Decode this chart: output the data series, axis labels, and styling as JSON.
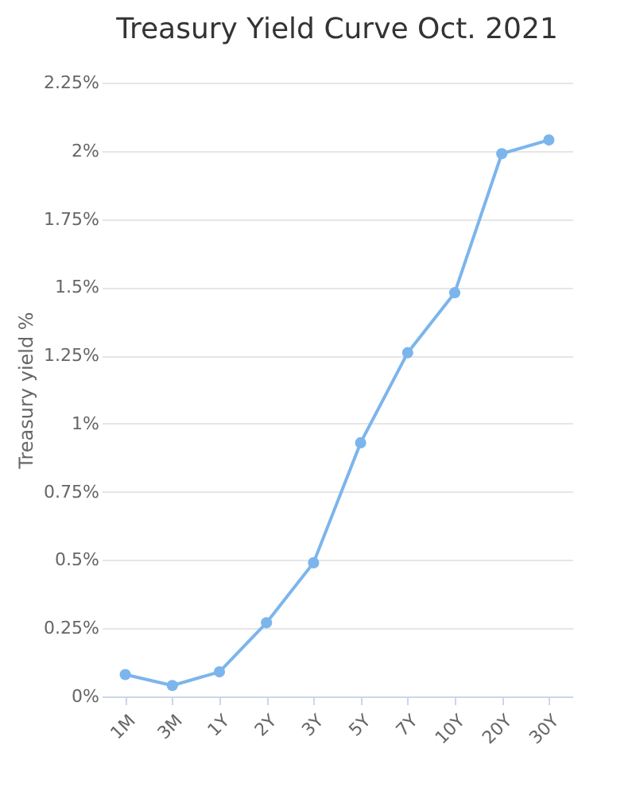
{
  "chart_data": {
    "type": "line",
    "title": "Treasury Yield Curve Oct. 2021",
    "ylabel": "Treasury yield %",
    "categories": [
      "1M",
      "3M",
      "1Y",
      "2Y",
      "3Y",
      "5Y",
      "7Y",
      "10Y",
      "20Y",
      "30Y"
    ],
    "series": [
      {
        "color": "#7cb5ec",
        "values": [
          0.08,
          0.04,
          0.09,
          0.27,
          0.49,
          0.93,
          1.26,
          1.48,
          1.99,
          2.04
        ]
      }
    ],
    "ylim": [
      0,
      2.25
    ],
    "yticks": [
      {
        "value": 0,
        "label": "0%"
      },
      {
        "value": 0.25,
        "label": "0.25%"
      },
      {
        "value": 0.5,
        "label": "0.5%"
      },
      {
        "value": 0.75,
        "label": "0.75%"
      },
      {
        "value": 1,
        "label": "1%"
      },
      {
        "value": 1.25,
        "label": "1.25%"
      },
      {
        "value": 1.5,
        "label": "1.5%"
      },
      {
        "value": 1.75,
        "label": "1.75%"
      },
      {
        "value": 2,
        "label": "2%"
      },
      {
        "value": 2.25,
        "label": "2.25%"
      }
    ],
    "grid": "y",
    "marker": "circle",
    "line_style": "solid"
  }
}
